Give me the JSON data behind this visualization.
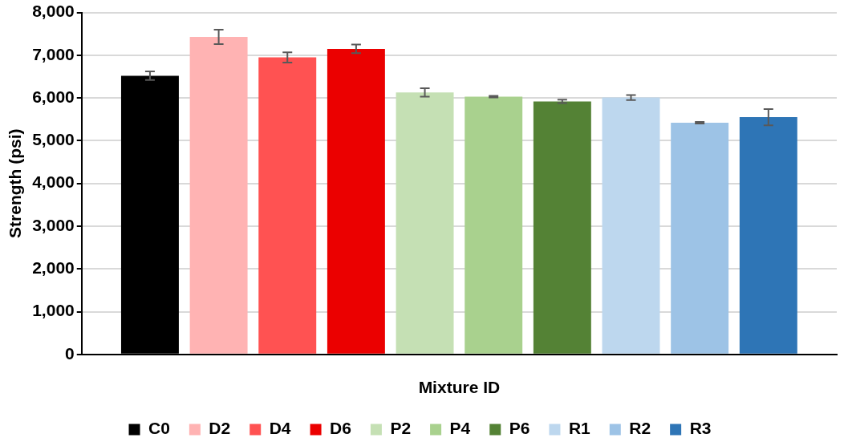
{
  "chart_data": {
    "type": "bar",
    "xlabel": "Mixture ID",
    "ylabel": "Strength (psi)",
    "categories": [
      null
    ],
    "ylim": [
      0,
      8000
    ],
    "yticks": [
      {
        "value": 0,
        "label": "0"
      },
      {
        "value": 1000,
        "label": "1,000"
      },
      {
        "value": 2000,
        "label": "2,000"
      },
      {
        "value": 3000,
        "label": "3,000"
      },
      {
        "value": 4000,
        "label": "4,000"
      },
      {
        "value": 5000,
        "label": "5,000"
      },
      {
        "value": 6000,
        "label": "6,000"
      },
      {
        "value": 7000,
        "label": "7,000"
      },
      {
        "value": 8000,
        "label": "8,000"
      }
    ],
    "grid": "y",
    "legend": "bottom",
    "series": [
      {
        "name": "C0",
        "color": "#000000",
        "values": [
          6520
        ],
        "errors": [
          100
        ]
      },
      {
        "name": "D2",
        "color": "#ffb3b3",
        "values": [
          7430
        ],
        "errors": [
          170
        ]
      },
      {
        "name": "D4",
        "color": "#ff5252",
        "values": [
          6950
        ],
        "errors": [
          120
        ]
      },
      {
        "name": "D6",
        "color": "#eb0000",
        "values": [
          7150
        ],
        "errors": [
          100
        ]
      },
      {
        "name": "P2",
        "color": "#c5e0b4",
        "values": [
          6130
        ],
        "errors": [
          100
        ]
      },
      {
        "name": "P4",
        "color": "#a9d18e",
        "values": [
          6030
        ],
        "errors": [
          20
        ]
      },
      {
        "name": "P6",
        "color": "#548235",
        "values": [
          5920
        ],
        "errors": [
          40
        ]
      },
      {
        "name": "R1",
        "color": "#bdd7ee",
        "values": [
          6010
        ],
        "errors": [
          60
        ]
      },
      {
        "name": "R2",
        "color": "#9dc3e6",
        "values": [
          5420
        ],
        "errors": [
          20
        ]
      },
      {
        "name": "R3",
        "color": "#2e75b6",
        "values": [
          5550
        ],
        "errors": [
          190
        ]
      }
    ]
  }
}
